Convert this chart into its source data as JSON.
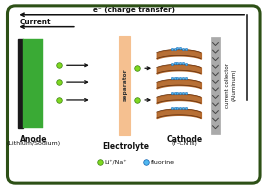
{
  "border_color": "#2d5016",
  "title_electron": "e⁻ (charge transfer)",
  "title_current": "Current",
  "anode_label1": "Anode",
  "anode_label2": "(Lithium/Sodium)",
  "electrolyte_label": "Electrolyte",
  "cathode_label1": "Cathode",
  "cathode_label2": "(F-CNTs)",
  "separator_label": "separator",
  "current_collector_label1": "current collector",
  "current_collector_label2": "(Aluminum)",
  "legend_li_label": "Li⁺/Na⁺",
  "legend_f_label": "fluorine",
  "anode_green": "#3aaa35",
  "anode_black": "#1a1a1a",
  "separator_fill": "#f5c090",
  "separator_edge": "#d48050",
  "ion_color": "#7ed820",
  "ion_edge": "#3a8010",
  "fluorine_color": "#50b8f0",
  "fluorine_edge": "#1060b0",
  "cnt_brown": "#b06020",
  "cnt_edge": "#603010",
  "collector_gray": "#aaaaaa",
  "collector_edge": "#666666",
  "text_color": "#111111",
  "arrow_color": "#111111",
  "bg_color": "#ffffff"
}
